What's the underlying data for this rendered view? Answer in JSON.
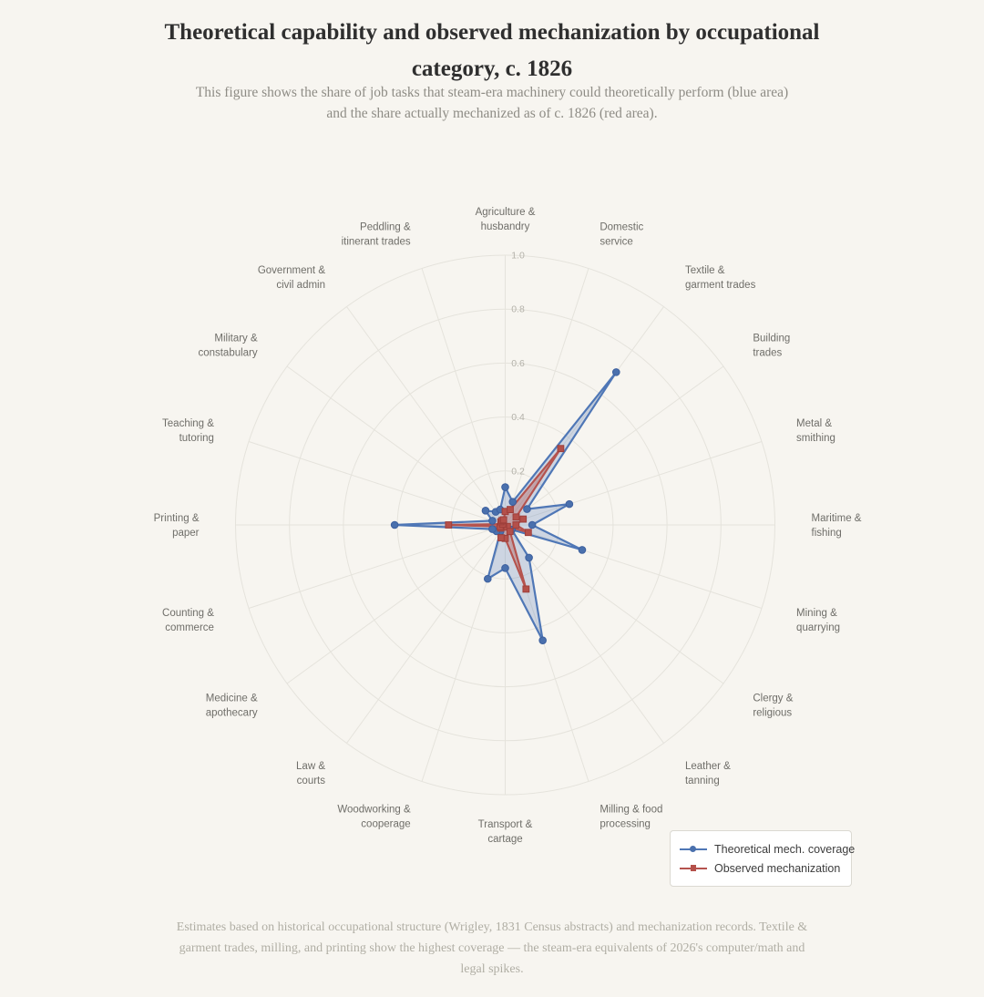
{
  "header": {
    "title": "Theoretical capability and observed mechanization by occupational\ncategory, c. 1826",
    "subtitle": "This figure shows the share of job tasks that steam-era machinery could theoretically perform (blue area)\nand the share actually mechanized as of c. 1826 (red area)."
  },
  "footnote": {
    "text": "Estimates based on historical occupational structure (Wrigley, 1831 Census abstracts) and mechanization records. Textile &\ngarment trades, milling, and printing show the highest coverage — the steam-era equivalents of 2026's computer/math and\nlegal spikes."
  },
  "legend": {
    "items": [
      {
        "label": "Theoretical mech. coverage"
      },
      {
        "label": "Observed mechanization"
      }
    ]
  },
  "chart_data": {
    "type": "radar",
    "categories": [
      "Agriculture &\nhusbandry",
      "Domestic\nservice",
      "Textile &\ngarment trades",
      "Building\ntrades",
      "Metal &\nsmithing",
      "Maritime &\nfishing",
      "Mining &\nquarrying",
      "Clergy &\nreligious",
      "Leather &\ntanning",
      "Milling & food\nprocessing",
      "Transport &\ncartage",
      "Woodworking &\ncooperage",
      "Law &\ncourts",
      "Medicine &\napothecary",
      "Counting &\ncommerce",
      "Printing &\npaper",
      "Teaching &\ntutoring",
      "Military &\nconstabulary",
      "Government &\ncivil admin",
      "Peddling &\nitinerant trades"
    ],
    "series": [
      {
        "name": "Theoretical mech. coverage",
        "marker": "circle",
        "color": "#4f77b6",
        "marker_color": "#4a70ad",
        "fill": "rgba(79,119,182,0.25)",
        "values": [
          0.14,
          0.09,
          0.7,
          0.1,
          0.25,
          0.1,
          0.3,
          0.03,
          0.15,
          0.45,
          0.16,
          0.21,
          0.03,
          0.04,
          0.05,
          0.41,
          0.05,
          0.09,
          0.06,
          0.06
        ]
      },
      {
        "name": "Observed mechanization",
        "marker": "square",
        "color": "#b5534e",
        "marker_color": "#b4504a",
        "fill": "rgba(181,83,78,0.35)",
        "values": [
          0.05,
          0.06,
          0.35,
          0.05,
          0.07,
          0.04,
          0.09,
          0.01,
          0.03,
          0.25,
          0.05,
          0.05,
          0.01,
          0.02,
          0.02,
          0.21,
          0.01,
          0.02,
          0.02,
          0.02
        ]
      }
    ],
    "radial_ticks": [
      "0.2",
      "0.4",
      "0.6",
      "0.8",
      "1.0"
    ],
    "radial_range": [
      0,
      1
    ],
    "grid": true,
    "legend_position": "bottom-right",
    "colors": {
      "background": "#f7f5f0",
      "grid": "#e5e3dc",
      "category_label": "#6f6e69",
      "tick_label": "#b4b2aa"
    }
  }
}
